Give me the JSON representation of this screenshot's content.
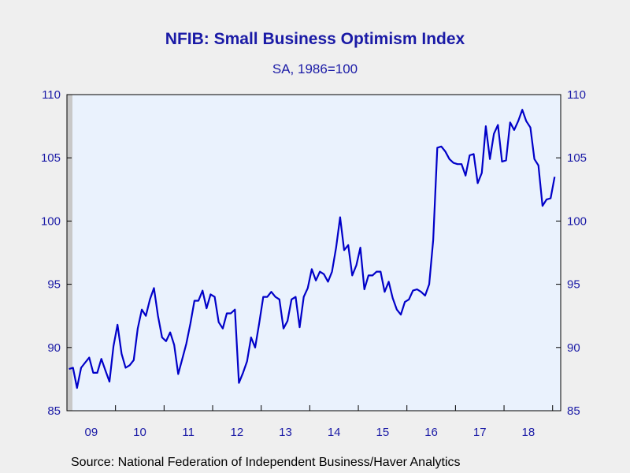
{
  "chart_data": {
    "type": "line",
    "title": "NFIB: Small Business Optimism Index",
    "subtitle": "SA, 1986=100",
    "source": "Source:  National Federation of Independent Business/Haver Analytics",
    "ylim": [
      85,
      110
    ],
    "yticks": [
      "85",
      "90",
      "95",
      "100",
      "105",
      "110"
    ],
    "xticks": [
      "09",
      "10",
      "11",
      "12",
      "13",
      "14",
      "15",
      "16",
      "17",
      "18"
    ],
    "x_start": "2009-01",
    "x_end": "2019-02",
    "grid": false,
    "line_color": "#0000c8",
    "plot_background": "#eaf2fd",
    "series": [
      {
        "values": [
          88.3,
          88.4,
          86.8,
          88.4,
          88.8,
          89.2,
          88.0,
          88.0,
          89.1,
          88.2,
          87.3,
          90.1,
          91.8,
          89.5,
          88.4,
          88.6,
          89.0,
          91.5,
          93.0,
          92.5,
          93.8,
          94.7,
          92.5,
          90.8,
          90.5,
          91.2,
          90.2,
          87.9,
          89.1,
          90.3,
          91.9,
          93.7,
          93.7,
          94.5,
          93.1,
          94.2,
          94.0,
          92.0,
          91.5,
          92.7,
          92.7,
          93.0,
          87.2,
          88.0,
          88.9,
          90.8,
          90.0,
          91.9,
          94.0,
          94.0,
          94.4,
          94.0,
          93.8,
          91.5,
          92.1,
          93.8,
          94.0,
          91.6,
          94.0,
          94.7,
          96.2,
          95.3,
          96.0,
          95.8,
          95.2,
          96.0,
          97.9,
          100.3,
          97.7,
          98.1,
          95.7,
          96.5,
          97.9,
          94.6,
          95.7,
          95.7,
          96.0,
          96.0,
          94.4,
          95.2,
          93.9,
          93.0,
          92.6,
          93.6,
          93.8,
          94.5,
          94.6,
          94.4,
          94.1,
          95.0,
          98.5,
          105.8,
          105.9,
          105.5,
          104.9,
          104.6,
          104.5,
          104.5,
          103.6,
          105.2,
          105.3,
          103.0,
          103.8,
          107.5,
          104.9,
          106.9,
          107.6,
          104.7,
          104.8,
          107.8,
          107.2,
          107.9,
          108.8,
          107.9,
          107.4,
          104.9,
          104.4,
          101.2,
          101.7,
          101.8,
          103.5
        ]
      }
    ]
  }
}
